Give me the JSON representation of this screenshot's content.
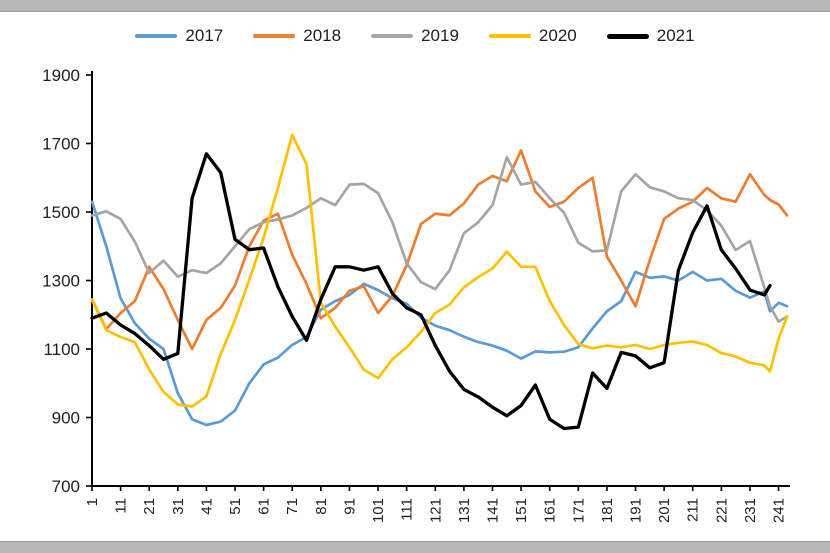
{
  "window": {
    "frame_color": "#b7b7b7",
    "background": "#ffffff"
  },
  "chart_data": {
    "type": "line",
    "title": "",
    "xlabel": "",
    "ylabel": "",
    "grid": false,
    "legend_position": "top",
    "axis_color": "#000000",
    "tick_label_color": "#1f1f1f",
    "ylim": [
      700,
      1900
    ],
    "xlim": [
      1,
      245
    ],
    "y_ticks": [
      700,
      900,
      1100,
      1300,
      1500,
      1700,
      1900
    ],
    "x_ticks": [
      1,
      11,
      21,
      31,
      41,
      51,
      61,
      71,
      81,
      91,
      101,
      111,
      121,
      131,
      141,
      151,
      161,
      171,
      181,
      191,
      201,
      211,
      221,
      231,
      241
    ],
    "x": [
      1,
      6,
      11,
      16,
      21,
      26,
      31,
      36,
      41,
      46,
      51,
      56,
      61,
      66,
      71,
      76,
      81,
      86,
      91,
      96,
      101,
      106,
      111,
      116,
      121,
      126,
      131,
      136,
      141,
      146,
      151,
      156,
      161,
      166,
      171,
      176,
      181,
      186,
      191,
      196,
      201,
      206,
      211,
      216,
      221,
      226,
      231,
      236,
      238,
      241,
      244
    ],
    "series": [
      {
        "name": "2017",
        "color": "#5B9BD5",
        "line_width": 2.7,
        "values": [
          1530,
          1400,
          1248,
          1175,
          1130,
          1100,
          971,
          895,
          878,
          888,
          920,
          1000,
          1055,
          1075,
          1112,
          1135,
          1215,
          1240,
          1258,
          1290,
          1272,
          1248,
          1232,
          1192,
          1168,
          1155,
          1136,
          1120,
          1110,
          1095,
          1072,
          1093,
          1090,
          1092,
          1105,
          1160,
          1210,
          1240,
          1325,
          1308,
          1312,
          1300,
          1325,
          1300,
          1305,
          1270,
          1250,
          1268,
          1210,
          1235,
          1225
        ]
      },
      {
        "name": "2018",
        "color": "#ED7D31",
        "line_width": 2.7,
        "values": [
          1245,
          1158,
          1205,
          1240,
          1340,
          1275,
          1185,
          1100,
          1185,
          1220,
          1285,
          1400,
          1475,
          1495,
          1375,
          1290,
          1190,
          1220,
          1270,
          1283,
          1205,
          1255,
          1345,
          1465,
          1495,
          1490,
          1525,
          1580,
          1605,
          1590,
          1680,
          1560,
          1515,
          1530,
          1570,
          1600,
          1370,
          1300,
          1225,
          1360,
          1480,
          1510,
          1530,
          1570,
          1540,
          1530,
          1610,
          1550,
          1535,
          1522,
          1490
        ]
      },
      {
        "name": "2019",
        "color": "#A5A5A5",
        "line_width": 2.7,
        "values": [
          1490,
          1502,
          1480,
          1413,
          1322,
          1358,
          1311,
          1330,
          1322,
          1350,
          1400,
          1450,
          1470,
          1478,
          1490,
          1512,
          1540,
          1520,
          1580,
          1582,
          1555,
          1470,
          1350,
          1295,
          1275,
          1330,
          1438,
          1470,
          1520,
          1660,
          1580,
          1588,
          1540,
          1498,
          1410,
          1385,
          1388,
          1560,
          1610,
          1572,
          1560,
          1540,
          1535,
          1505,
          1460,
          1389,
          1415,
          1280,
          1225,
          1180,
          1195
        ]
      },
      {
        "name": "2020",
        "color": "#FFC000",
        "line_width": 2.7,
        "values": [
          1243,
          1155,
          1135,
          1120,
          1040,
          975,
          938,
          932,
          962,
          1085,
          1185,
          1302,
          1425,
          1570,
          1725,
          1640,
          1235,
          1165,
          1105,
          1040,
          1015,
          1070,
          1105,
          1150,
          1205,
          1230,
          1280,
          1310,
          1335,
          1384,
          1340,
          1340,
          1240,
          1170,
          1115,
          1102,
          1110,
          1105,
          1112,
          1100,
          1112,
          1118,
          1122,
          1112,
          1088,
          1078,
          1060,
          1052,
          1035,
          1130,
          1195
        ]
      },
      {
        "name": "2021",
        "color": "#000000",
        "line_width": 3.3,
        "values": [
          1190,
          1205,
          1170,
          1145,
          1110,
          1070,
          1087,
          1540,
          1670,
          1615,
          1420,
          1390,
          1395,
          1282,
          1195,
          1125,
          1245,
          1340,
          1340,
          1330,
          1340,
          1262,
          1220,
          1200,
          1110,
          1035,
          982,
          960,
          930,
          905,
          935,
          995,
          895,
          868,
          872,
          1030,
          985,
          1090,
          1080,
          1045,
          1060,
          1330,
          1440,
          1518,
          1390,
          1335,
          1272,
          1258,
          1285,
          null,
          null
        ]
      }
    ]
  }
}
